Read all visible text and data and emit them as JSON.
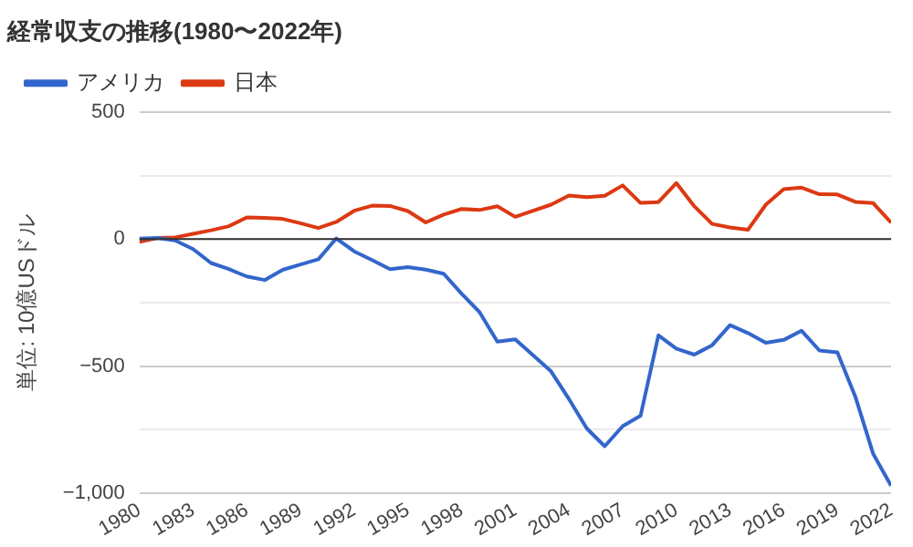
{
  "chart_data": {
    "type": "line",
    "title": "経常収支の推移(1980〜2022年)",
    "ylabel": "単位: 10億USドル",
    "x": [
      1980,
      1981,
      1982,
      1983,
      1984,
      1985,
      1986,
      1987,
      1988,
      1989,
      1990,
      1991,
      1992,
      1993,
      1994,
      1995,
      1996,
      1997,
      1998,
      1999,
      2000,
      2001,
      2002,
      2003,
      2004,
      2005,
      2006,
      2007,
      2008,
      2009,
      2010,
      2011,
      2012,
      2013,
      2014,
      2015,
      2016,
      2017,
      2018,
      2019,
      2020,
      2021,
      2022
    ],
    "series": [
      {
        "name": "アメリカ",
        "color": "#3366cc",
        "values": [
          2,
          5,
          -5,
          -39,
          -94,
          -118,
          -147,
          -161,
          -121,
          -100,
          -79,
          3,
          -48,
          -82,
          -118,
          -110,
          -120,
          -136,
          -215,
          -287,
          -404,
          -395,
          -458,
          -521,
          -630,
          -746,
          -816,
          -737,
          -696,
          -379,
          -431,
          -455,
          -418,
          -339,
          -370,
          -408,
          -397,
          -361,
          -439,
          -446,
          -620,
          -846,
          -972
        ]
      },
      {
        "name": "日本",
        "color": "#dc3912",
        "values": [
          -11,
          5,
          7,
          21,
          35,
          51,
          86,
          84,
          80,
          63,
          44,
          68,
          112,
          132,
          131,
          111,
          66,
          97,
          119,
          115,
          130,
          88,
          112,
          136,
          172,
          166,
          171,
          212,
          143,
          146,
          221,
          130,
          60,
          46,
          37,
          136,
          197,
          203,
          177,
          176,
          147,
          142,
          65
        ]
      }
    ],
    "xlim": [
      1980,
      2022
    ],
    "xticks": [
      1980,
      1983,
      1986,
      1989,
      1992,
      1995,
      1998,
      2001,
      2004,
      2007,
      2010,
      2013,
      2016,
      2019,
      2022
    ],
    "ylim": [
      -1000,
      500
    ],
    "yticks": [
      {
        "value": -1000,
        "label": "−1,000"
      },
      {
        "value": -750,
        "label": null
      },
      {
        "value": -500,
        "label": "−500"
      },
      {
        "value": -250,
        "label": null
      },
      0,
      {
        "value": 250,
        "label": null
      },
      500
    ],
    "ref_lines": [
      {
        "axis": "y",
        "value": 0,
        "color": "#333333"
      }
    ],
    "grid": "y",
    "legend": "top left",
    "marker": "none",
    "line_style": "solid"
  }
}
